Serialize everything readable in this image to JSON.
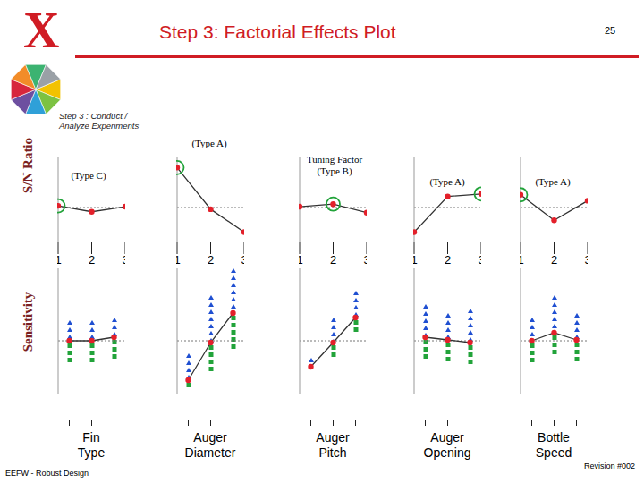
{
  "title": "Step 3: Factorial Effects Plot",
  "page_number": "25",
  "logo": "X",
  "step_label": "Step 3 : Conduct / Analyze Experiments",
  "row_labels": [
    "S/N Ratio",
    "Sensitivity"
  ],
  "footer_left": "EEFW - Robust Design",
  "footer_right": "Revision #002",
  "chart_data": [
    {
      "type": "line",
      "annotation": "(Type C)",
      "categories": [
        "1",
        "2",
        "3"
      ],
      "values": [
        4.2,
        3.5,
        4.1
      ],
      "mean": 4.0,
      "circled": "1",
      "ylim": [
        0,
        10
      ],
      "color": "#e3202a",
      "marker": "circle",
      "tick_labels": "x"
    },
    {
      "type": "line",
      "annotation": "(Type A)",
      "categories": [
        "1",
        "2",
        "3"
      ],
      "values": [
        8.7,
        3.8,
        1.1
      ],
      "mean": 4.0,
      "circled": "1",
      "ylim": [
        0,
        10
      ],
      "color": "#e3202a",
      "marker": "circle",
      "tick_labels": "x"
    },
    {
      "type": "line",
      "annotation": "Tuning Factor (Type B)",
      "categories": [
        "1",
        "2",
        "3"
      ],
      "values": [
        4.1,
        4.4,
        3.4
      ],
      "mean": 4.0,
      "circled": "2",
      "ylim": [
        0,
        10
      ],
      "color": "#e3202a",
      "marker": "circle",
      "tick_labels": "x"
    },
    {
      "type": "line",
      "annotation": "(Type A)",
      "categories": [
        "1",
        "2",
        "3"
      ],
      "values": [
        1.1,
        5.3,
        5.6
      ],
      "mean": 4.0,
      "circled": "3",
      "ylim": [
        0,
        10
      ],
      "color": "#e3202a",
      "marker": "circle",
      "tick_labels": "x"
    },
    {
      "type": "line",
      "annotation": "(Type A)",
      "categories": [
        "1",
        "2",
        "3"
      ],
      "values": [
        5.5,
        2.5,
        4.8
      ],
      "mean": 4.0,
      "circled": "1",
      "ylim": [
        0,
        10
      ],
      "color": "#e3202a",
      "marker": "circle",
      "tick_labels": "x"
    },
    {
      "type": "line",
      "xlabel": "Fin Type",
      "categories": [
        "1",
        "2",
        "3"
      ],
      "values": [
        5.9,
        5.9,
        6.3
      ],
      "high": [
        8.2,
        8.2,
        8.5
      ],
      "low": [
        3.0,
        3.0,
        3.5
      ],
      "mean": 5.9,
      "ylim": [
        0,
        14
      ],
      "color": "#e3202a",
      "marker": "circle",
      "tick_labels": "x"
    },
    {
      "type": "line",
      "xlabel": "Auger Diameter",
      "categories": [
        "1",
        "2",
        "3"
      ],
      "values": [
        1.5,
        5.7,
        9.0
      ],
      "high": [
        4.5,
        11.0,
        14.0
      ],
      "low": [
        0.2,
        2.5,
        5.0
      ],
      "mean": 5.9,
      "ylim": [
        0,
        14
      ],
      "color": "#e3202a",
      "marker": "circle",
      "tick_labels": "x"
    },
    {
      "type": "line",
      "xlabel": "Auger Pitch",
      "categories": [
        "1",
        "2",
        "3"
      ],
      "values": [
        3.0,
        5.7,
        8.5
      ],
      "high": [
        4.0,
        8.5,
        11.5
      ],
      "low": [
        2.7,
        3.8,
        6.8
      ],
      "mean": 5.9,
      "ylim": [
        0,
        14
      ],
      "color": "#e3202a",
      "marker": "circle",
      "tick_labels": "x"
    },
    {
      "type": "line",
      "xlabel": "Auger Opening",
      "categories": [
        "1",
        "2",
        "3"
      ],
      "values": [
        6.3,
        6.0,
        5.7
      ],
      "high": [
        10.0,
        9.0,
        9.5
      ],
      "low": [
        3.2,
        3.5,
        3.0
      ],
      "mean": 5.9,
      "ylim": [
        0,
        14
      ],
      "color": "#e3202a",
      "marker": "circle",
      "tick_labels": "x"
    },
    {
      "type": "line",
      "xlabel": "Bottle Speed",
      "categories": [
        "1",
        "2",
        "3"
      ],
      "values": [
        5.9,
        6.8,
        6.0
      ],
      "high": [
        8.5,
        11.0,
        9.0
      ],
      "low": [
        3.2,
        4.0,
        3.5
      ],
      "mean": 5.9,
      "ylim": [
        0,
        14
      ],
      "color": "#e3202a",
      "marker": "circle",
      "tick_labels": "x"
    }
  ]
}
